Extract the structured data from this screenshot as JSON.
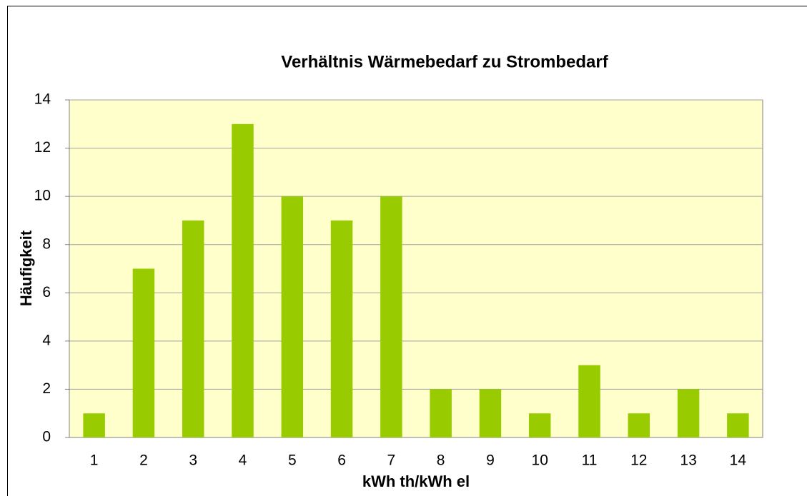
{
  "chart_data": {
    "type": "bar",
    "title": "Verhältnis Wärmebedarf zu Strombedarf",
    "x_label": "kWh th/kWh el",
    "y_label": "Häufigkeit",
    "categories": [
      "1",
      "2",
      "3",
      "4",
      "5",
      "6",
      "7",
      "8",
      "9",
      "10",
      "11",
      "12",
      "13",
      "14"
    ],
    "values": [
      1,
      7,
      9,
      13,
      10,
      9,
      10,
      2,
      2,
      1,
      3,
      1,
      2,
      1
    ],
    "color": "#99cc00",
    "plot_background": "#ffffcc",
    "ylim": [
      0,
      14
    ],
    "yticks": [
      0,
      2,
      4,
      6,
      8,
      10,
      12,
      14
    ],
    "grid": true
  }
}
